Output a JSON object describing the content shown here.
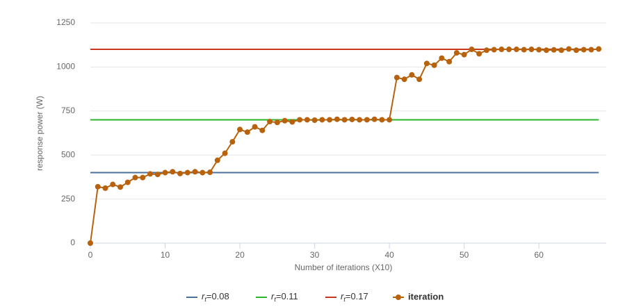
{
  "chart_data": {
    "type": "line",
    "xlabel": "Number of iterations (X10)",
    "ylabel": "response power (W)",
    "xlim": [
      0,
      69
    ],
    "xticks": [
      0,
      10,
      20,
      30,
      40,
      50,
      60
    ],
    "ylim": [
      0,
      1250
    ],
    "yticks": [
      0,
      250,
      500,
      750,
      1000,
      1250
    ],
    "grid": true,
    "legend": "bottom",
    "series": [
      {
        "name": "rt=0.08",
        "color": "#4a6f9c",
        "markers": false,
        "x": [
          0,
          68
        ],
        "values": [
          400,
          400
        ]
      },
      {
        "name": "rt=0.11",
        "color": "#2bb52b",
        "markers": false,
        "x": [
          0,
          68
        ],
        "values": [
          700,
          700
        ]
      },
      {
        "name": "rt=0.17",
        "color": "#c8361c",
        "markers": false,
        "x": [
          0,
          68
        ],
        "values": [
          1100,
          1100
        ]
      },
      {
        "name": "iteration",
        "color": "#b8620e",
        "markers": true,
        "x": [
          0,
          1,
          2,
          3,
          4,
          5,
          6,
          7,
          8,
          9,
          10,
          11,
          12,
          13,
          14,
          15,
          16,
          17,
          18,
          19,
          20,
          21,
          22,
          23,
          24,
          25,
          26,
          27,
          28,
          29,
          30,
          31,
          32,
          33,
          34,
          35,
          36,
          37,
          38,
          39,
          40,
          41,
          42,
          43,
          44,
          45,
          46,
          47,
          48,
          49,
          50,
          51,
          52,
          53,
          54,
          55,
          56,
          57,
          58,
          59,
          60,
          61,
          62,
          63,
          64,
          65,
          66,
          67,
          68
        ],
        "values": [
          0,
          320,
          312,
          333,
          318,
          345,
          372,
          372,
          393,
          390,
          400,
          405,
          395,
          400,
          405,
          400,
          402,
          470,
          510,
          575,
          645,
          630,
          660,
          640,
          690,
          685,
          695,
          688,
          700,
          700,
          698,
          700,
          700,
          703,
          700,
          702,
          700,
          700,
          703,
          700,
          700,
          940,
          930,
          955,
          930,
          1020,
          1010,
          1050,
          1030,
          1080,
          1070,
          1100,
          1075,
          1095,
          1098,
          1100,
          1100,
          1100,
          1098,
          1100,
          1098,
          1095,
          1097,
          1095,
          1102,
          1095,
          1098,
          1098,
          1102
        ]
      }
    ]
  }
}
